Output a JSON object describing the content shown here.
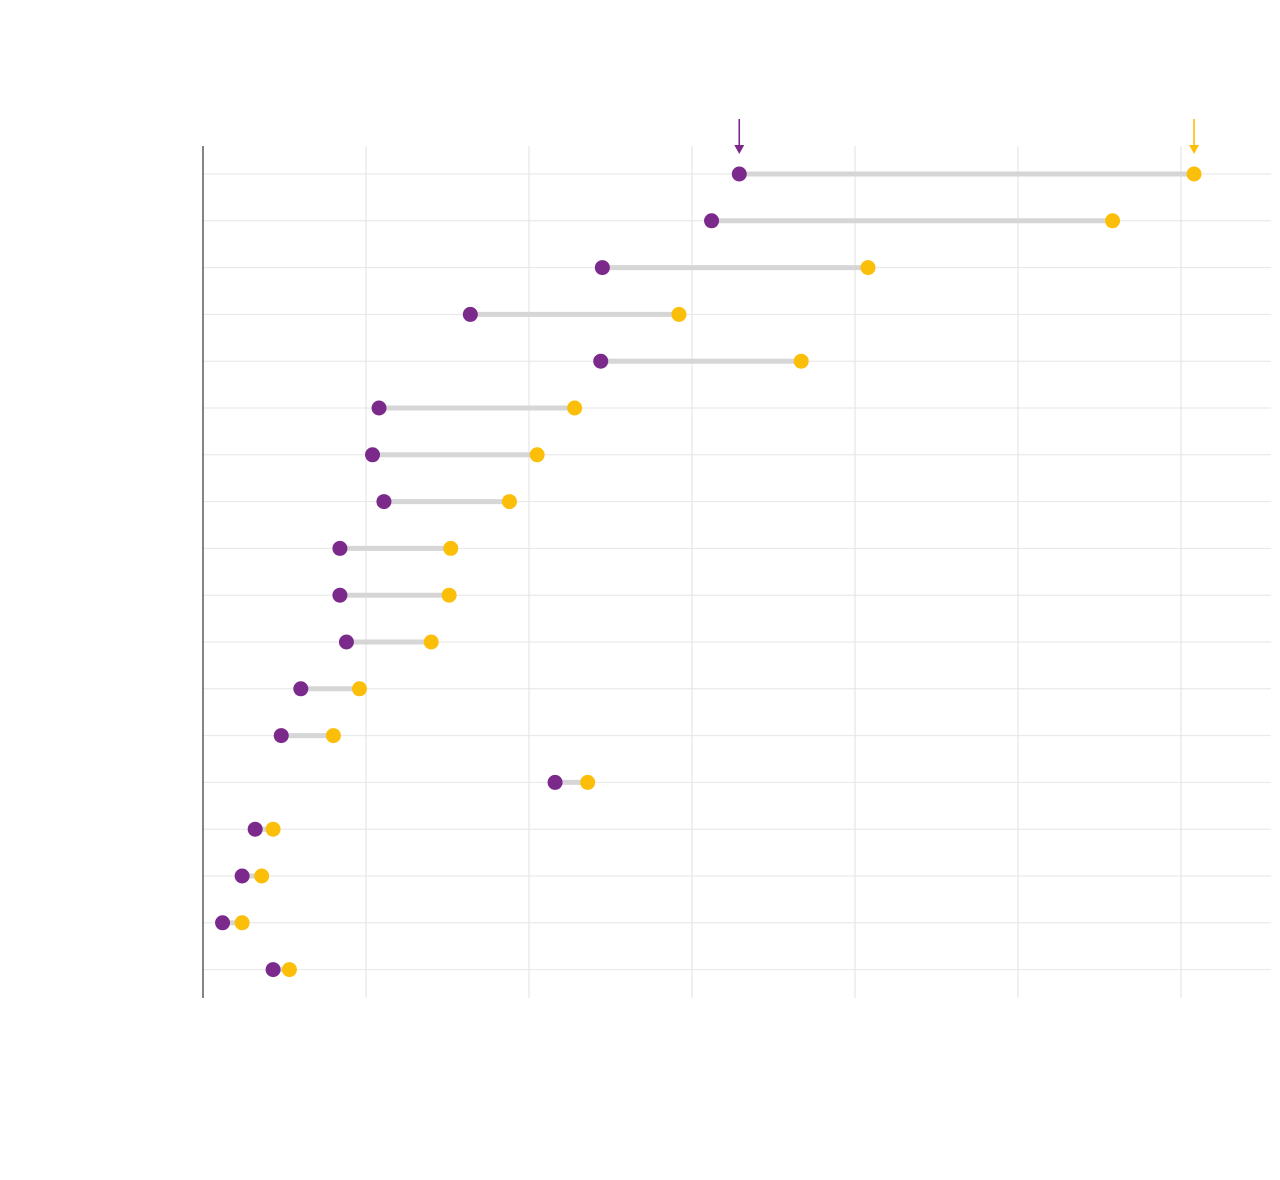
{
  "chart_data": {
    "type": "dumbbell",
    "title": "",
    "xlabel": "",
    "ylabel": "",
    "xlim": [
      0,
      6.6
    ],
    "gridlines_x": [
      0,
      1,
      2,
      3,
      4,
      5,
      6
    ],
    "grid": true,
    "rows": [
      {
        "start": 3.29,
        "end": 6.08
      },
      {
        "start": 3.12,
        "end": 5.58
      },
      {
        "start": 2.45,
        "end": 4.08
      },
      {
        "start": 1.64,
        "end": 2.92
      },
      {
        "start": 2.44,
        "end": 3.67
      },
      {
        "start": 1.08,
        "end": 2.28
      },
      {
        "start": 1.04,
        "end": 2.05
      },
      {
        "start": 1.11,
        "end": 1.88
      },
      {
        "start": 0.84,
        "end": 1.52
      },
      {
        "start": 0.84,
        "end": 1.51
      },
      {
        "start": 0.88,
        "end": 1.4
      },
      {
        "start": 0.6,
        "end": 0.96
      },
      {
        "start": 0.48,
        "end": 0.8
      },
      {
        "start": 2.16,
        "end": 2.36
      },
      {
        "start": 0.32,
        "end": 0.43
      },
      {
        "start": 0.24,
        "end": 0.36
      },
      {
        "start": 0.12,
        "end": 0.24
      },
      {
        "start": 0.43,
        "end": 0.53
      }
    ],
    "markers": [
      {
        "series": "start",
        "row": 0
      },
      {
        "series": "end",
        "row": 0
      }
    ],
    "colors": {
      "start": "#7b2a8c",
      "end": "#fbbf0a"
    }
  }
}
